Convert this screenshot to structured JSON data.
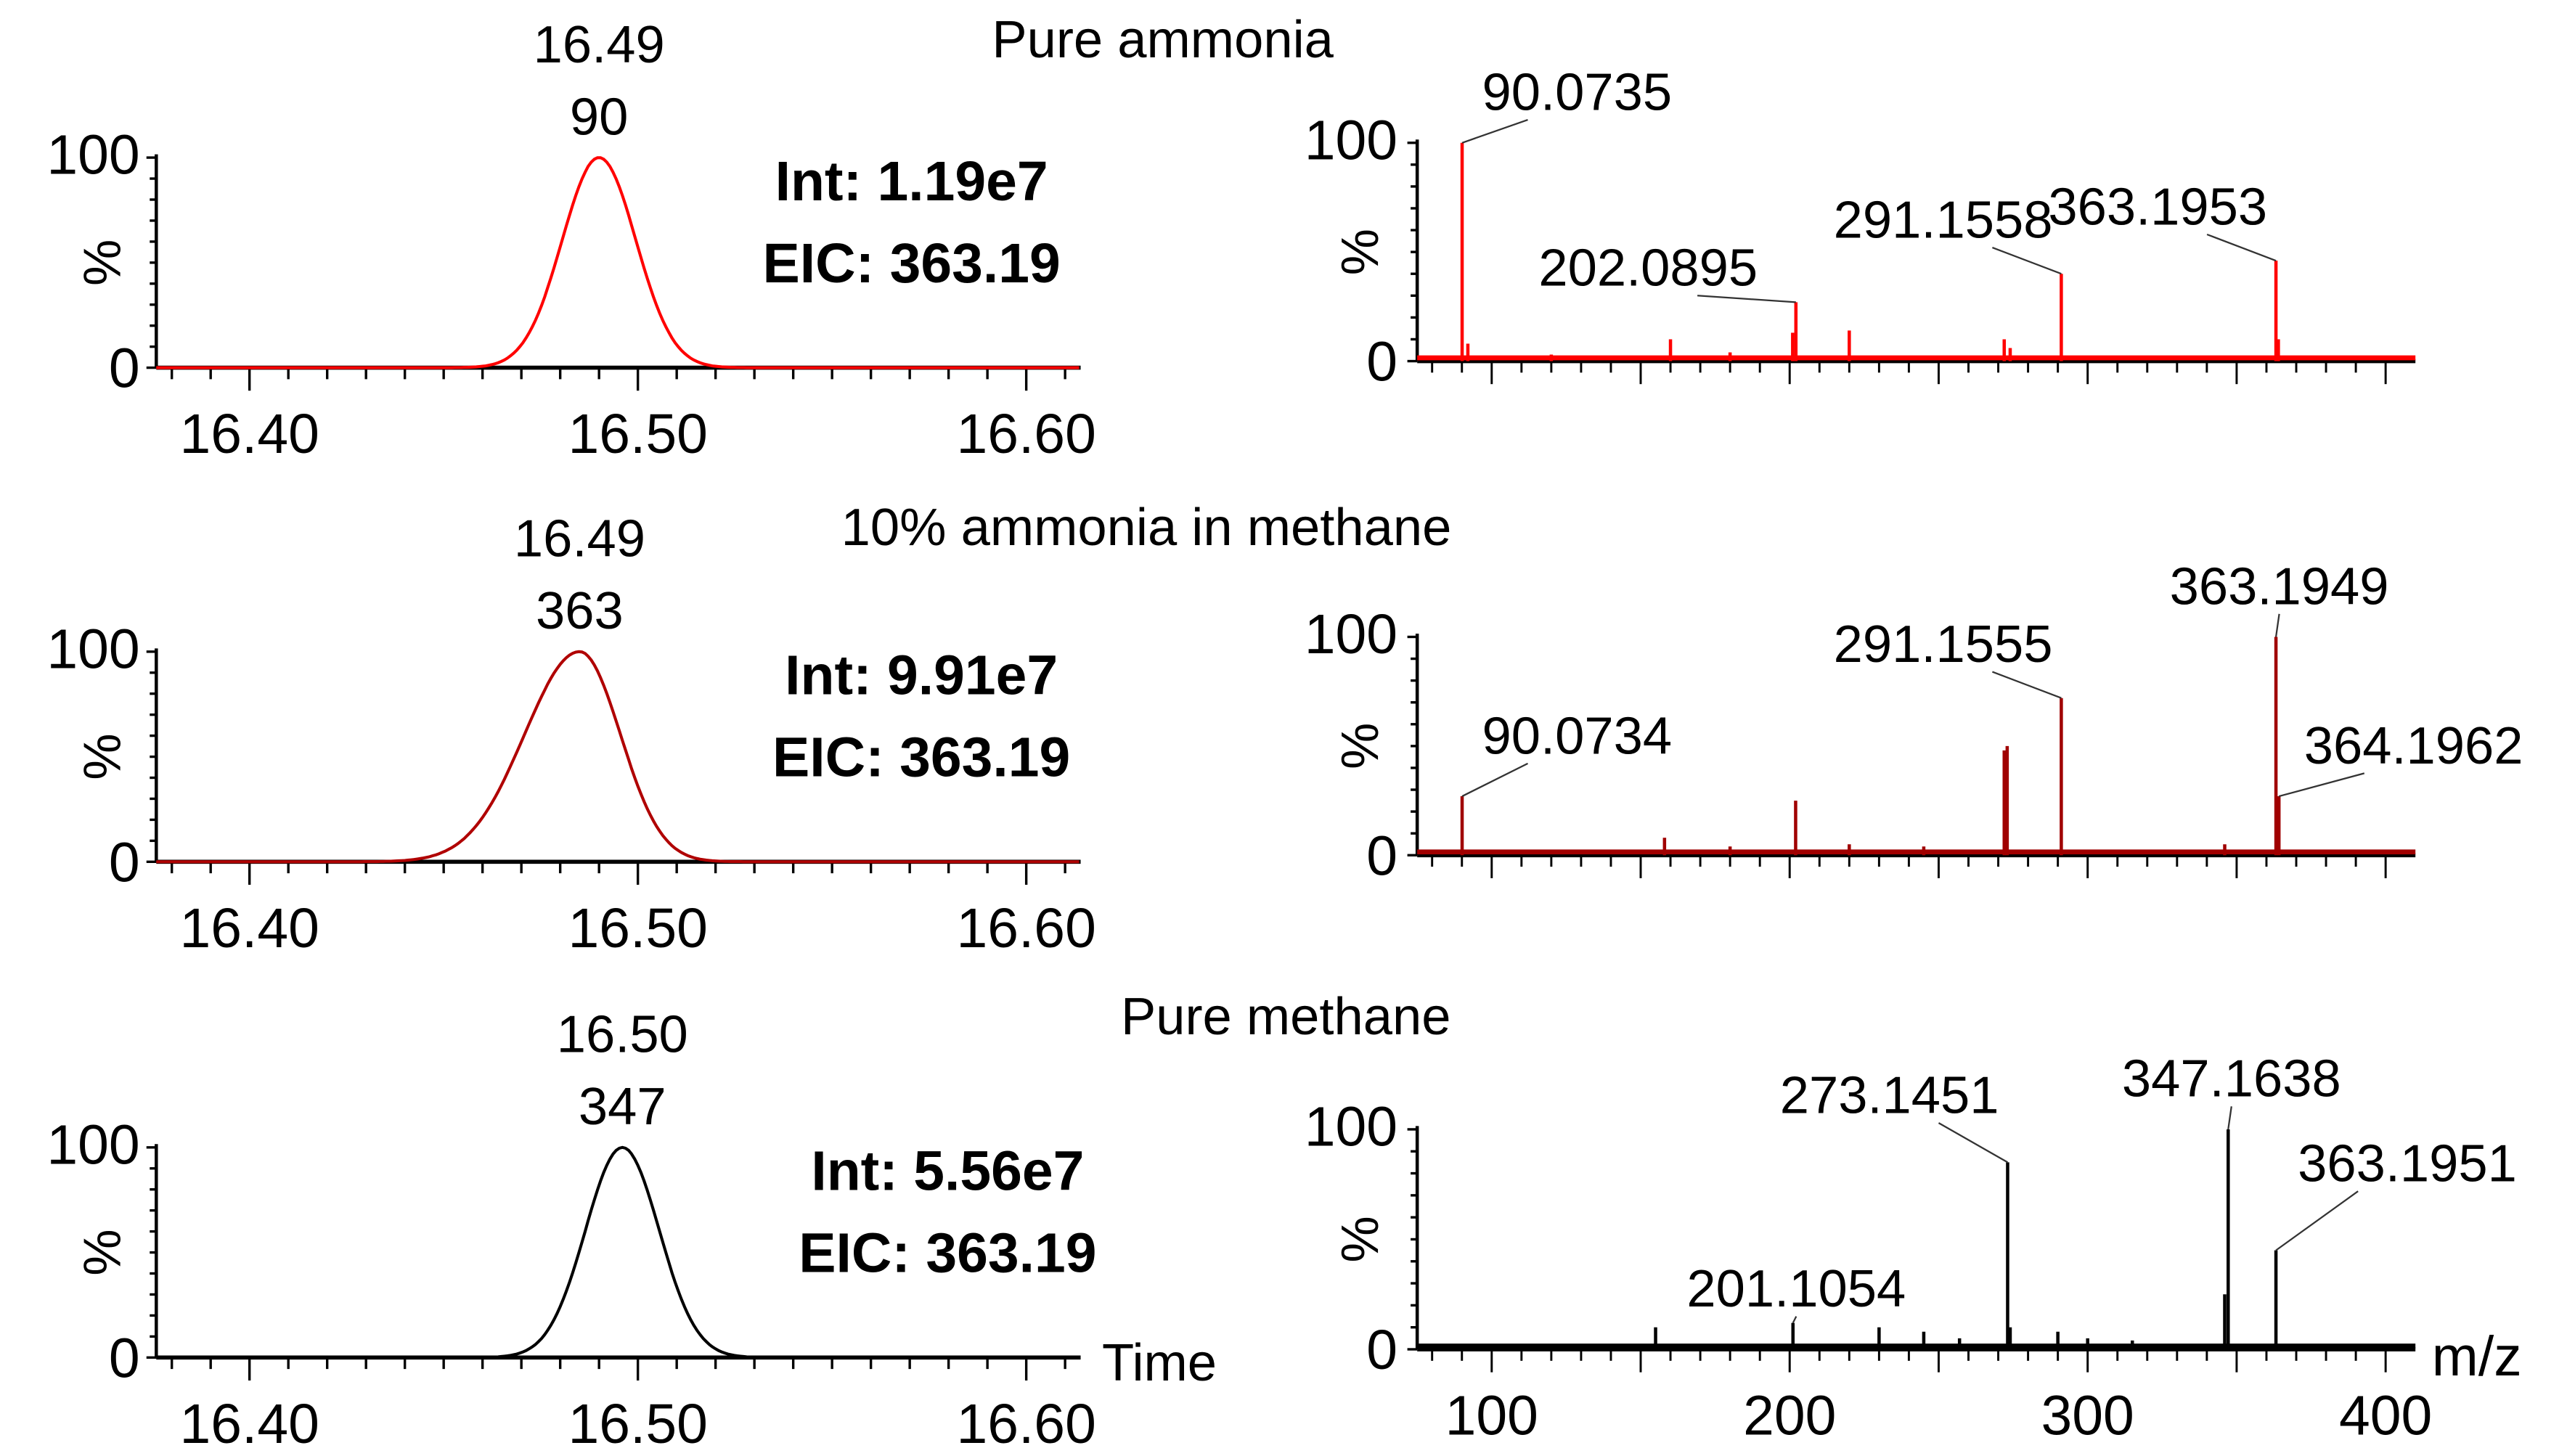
{
  "chart_data": [
    {
      "type": "line",
      "panel": "chromatogram",
      "title": "Pure ammonia",
      "color": "#ff0000",
      "xlim": [
        16.376,
        16.614
      ],
      "ylim": [
        0,
        100
      ],
      "ylabel": "%",
      "xticks": [
        "16.40",
        "16.50",
        "16.60"
      ],
      "yticks": [
        "0",
        "100"
      ],
      "peak": {
        "rt": 16.49,
        "sigma": 0.0095,
        "tail": 0
      },
      "peak_label": [
        "16.49",
        "90"
      ],
      "int_label": "Int: 1.19e7",
      "eic_label": "EIC: 363.19"
    },
    {
      "type": "bar",
      "panel": "spectrum",
      "color": "#ff0000",
      "xlim": [
        75,
        410
      ],
      "ylim": [
        0,
        100
      ],
      "ylabel": "%",
      "xticks": [
        "100",
        "200",
        "300",
        "400"
      ],
      "yticks": [
        "0",
        "100"
      ],
      "peaks": [
        [
          90.0735,
          100
        ],
        [
          92,
          8
        ],
        [
          160,
          10
        ],
        [
          202.0895,
          27
        ],
        [
          201,
          13
        ],
        [
          220,
          14
        ],
        [
          272,
          10
        ],
        [
          274,
          6
        ],
        [
          291.1558,
          40
        ],
        [
          363.1953,
          46
        ],
        [
          364,
          10
        ],
        [
          120,
          3
        ],
        [
          180,
          4
        ]
      ],
      "labels": [
        {
          "mz": 90.0735,
          "text": "90.0735"
        },
        {
          "mz": 202.0895,
          "text": "202.0895"
        },
        {
          "mz": 291.1558,
          "text": "291.1558"
        },
        {
          "mz": 363.1953,
          "text": "363.1953"
        }
      ]
    },
    {
      "type": "line",
      "panel": "chromatogram",
      "title": "10% ammonia in methane",
      "color": "#b00000",
      "xlim": [
        16.376,
        16.614
      ],
      "ylim": [
        0,
        100
      ],
      "ylabel": "%",
      "xticks": [
        "16.40",
        "16.50",
        "16.60"
      ],
      "yticks": [
        "0",
        "100"
      ],
      "peak": {
        "rt": 16.485,
        "sigma": 0.0105,
        "tail": 1
      },
      "peak_label": [
        "16.49",
        "363"
      ],
      "int_label": "Int: 9.91e7",
      "eic_label": "EIC: 363.19"
    },
    {
      "type": "bar",
      "panel": "spectrum",
      "color": "#a00000",
      "xlim": [
        75,
        410
      ],
      "ylim": [
        0,
        100
      ],
      "ylabel": "%",
      "xticks": [
        "100",
        "200",
        "300",
        "400"
      ],
      "yticks": [
        "0",
        "100"
      ],
      "peaks": [
        [
          90.0734,
          27
        ],
        [
          158,
          8
        ],
        [
          202,
          25
        ],
        [
          220,
          5
        ],
        [
          273,
          50
        ],
        [
          272,
          48
        ],
        [
          291.1555,
          72
        ],
        [
          346,
          5
        ],
        [
          363.1949,
          100
        ],
        [
          364.1962,
          27
        ],
        [
          180,
          4
        ],
        [
          245,
          4
        ]
      ],
      "labels": [
        {
          "mz": 90.0734,
          "text": "90.0734"
        },
        {
          "mz": 291.1555,
          "text": "291.1555"
        },
        {
          "mz": 363.1949,
          "text": "363.1949"
        },
        {
          "mz": 364.1962,
          "text": "364.1962"
        }
      ]
    },
    {
      "type": "line",
      "panel": "chromatogram",
      "title": "Pure methane",
      "color": "#000000",
      "xlim": [
        16.376,
        16.614
      ],
      "ylim": [
        0,
        100
      ],
      "ylabel": "%",
      "xlabel": "Time",
      "xticks": [
        "16.40",
        "16.50",
        "16.60"
      ],
      "yticks": [
        "0",
        "100"
      ],
      "peak": {
        "rt": 16.496,
        "sigma": 0.0095,
        "tail": 0
      },
      "peak_label": [
        "16.50",
        "347"
      ],
      "int_label": "Int: 5.56e7",
      "eic_label": "EIC: 363.19"
    },
    {
      "type": "bar",
      "panel": "spectrum",
      "color": "#000000",
      "xlim": [
        75,
        410
      ],
      "ylim": [
        0,
        100
      ],
      "ylabel": "%",
      "xlabel": "m/z",
      "xticks": [
        "100",
        "200",
        "300",
        "400"
      ],
      "yticks": [
        "0",
        "100"
      ],
      "peaks": [
        [
          155,
          10
        ],
        [
          201.1054,
          12
        ],
        [
          230,
          10
        ],
        [
          245,
          8
        ],
        [
          257,
          5
        ],
        [
          273.1451,
          85
        ],
        [
          274,
          10
        ],
        [
          290,
          8
        ],
        [
          300,
          5
        ],
        [
          347.1638,
          100
        ],
        [
          346,
          25
        ],
        [
          363.1951,
          45
        ],
        [
          315,
          4
        ]
      ],
      "labels": [
        {
          "mz": 201.1054,
          "text": "201.1054"
        },
        {
          "mz": 273.1451,
          "text": "273.1451"
        },
        {
          "mz": 347.1638,
          "text": "347.1638"
        },
        {
          "mz": 363.1951,
          "text": "363.1951"
        }
      ]
    }
  ]
}
